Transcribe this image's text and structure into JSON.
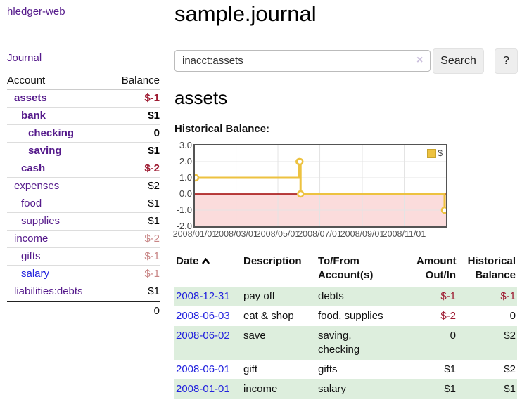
{
  "colors": {
    "link_purple": "#551a8b",
    "link_blue": "#2222dd",
    "negative_strong": "#9e1b32",
    "negative_soft": "#c88585",
    "row_green": "#ddeedd",
    "chart_yellow": "#EDC240"
  },
  "sidebar": {
    "brand": "hledger-web",
    "nav_journal": "Journal",
    "col_account": "Account",
    "col_balance": "Balance",
    "accounts": [
      {
        "name": "assets",
        "depth": 1,
        "bold": true,
        "balance": "$-1",
        "balance_class": "neg-strong",
        "link": "purple"
      },
      {
        "name": "bank",
        "depth": 2,
        "bold": true,
        "balance": "$1",
        "balance_class": "",
        "link": "purple"
      },
      {
        "name": "checking",
        "depth": 3,
        "bold": true,
        "balance": "0",
        "balance_class": "",
        "link": "purple"
      },
      {
        "name": "saving",
        "depth": 3,
        "bold": true,
        "balance": "$1",
        "balance_class": "",
        "link": "purple"
      },
      {
        "name": "cash",
        "depth": 2,
        "bold": true,
        "balance": "$-2",
        "balance_class": "neg-strong",
        "link": "purple"
      },
      {
        "name": "expenses",
        "depth": 1,
        "bold": false,
        "balance": "$2",
        "balance_class": "",
        "link": "purple"
      },
      {
        "name": "food",
        "depth": 2,
        "bold": false,
        "balance": "$1",
        "balance_class": "",
        "link": "purple"
      },
      {
        "name": "supplies",
        "depth": 2,
        "bold": false,
        "balance": "$1",
        "balance_class": "",
        "link": "purple"
      },
      {
        "name": "income",
        "depth": 1,
        "bold": false,
        "balance": "$-2",
        "balance_class": "neg-soft",
        "link": "purple"
      },
      {
        "name": "gifts",
        "depth": 2,
        "bold": false,
        "balance": "$-1",
        "balance_class": "neg-soft",
        "link": "purple"
      },
      {
        "name": "salary",
        "depth": 2,
        "bold": false,
        "balance": "$-1",
        "balance_class": "neg-soft",
        "link": "blue"
      },
      {
        "name": "liabilities:debts",
        "depth": 1,
        "bold": false,
        "balance": "$1",
        "balance_class": "",
        "link": "purple"
      }
    ],
    "total": "0"
  },
  "main": {
    "title": "sample.journal",
    "search": {
      "value": "inacct:assets",
      "clear_icon": "×",
      "search_label": "Search",
      "help_label": "?"
    },
    "account_title": "assets",
    "chart_label": "Historical Balance:"
  },
  "chart_data": {
    "type": "line",
    "title": "Historical Balance",
    "step": true,
    "series": [
      {
        "name": "$",
        "points": [
          [
            "2008-01-01",
            1
          ],
          [
            "2008-06-01",
            2
          ],
          [
            "2008-06-02",
            2
          ],
          [
            "2008-06-03",
            0
          ],
          [
            "2008-12-31",
            -1
          ]
        ]
      }
    ],
    "ylim": [
      -2,
      3
    ],
    "yticks": [
      "3.0",
      "2.0",
      "1.0",
      "0.0",
      "-1.0",
      "-2.0"
    ],
    "ytick_values": [
      3,
      2,
      1,
      0,
      -1,
      -2
    ],
    "xlim": [
      "2008/01/01",
      "2009/01/01"
    ],
    "xticks": [
      "2008/01/01",
      "2008/03/01",
      "2008/05/01",
      "2008/07/01",
      "2008/09/01",
      "2008/11/01"
    ],
    "grid": true,
    "legend_position": "top-right",
    "legend_label": "$",
    "line_color": "#EDC240",
    "marker_fill": "#ffffff",
    "negative_region_fill": "#fbdcdc",
    "zero_line_color": "#a00000",
    "plot_border_color": "#545454"
  },
  "register": {
    "columns": {
      "date": "Date",
      "description": "Description",
      "accounts": "To/From\nAccount(s)",
      "amount": "Amount\nOut/In",
      "balance": "Historical\nBalance"
    },
    "rows": [
      {
        "date": "2008-12-31",
        "description": "pay off",
        "accounts": "debts",
        "amount": "$-1",
        "amount_neg": true,
        "balance": "$-1",
        "balance_neg": true,
        "shaded": true
      },
      {
        "date": "2008-06-03",
        "description": "eat & shop",
        "accounts": "food, supplies",
        "amount": "$-2",
        "amount_neg": true,
        "balance": "0",
        "balance_neg": false,
        "shaded": false
      },
      {
        "date": "2008-06-02",
        "description": "save",
        "accounts": "saving,\nchecking",
        "amount": "0",
        "amount_neg": false,
        "balance": "$2",
        "balance_neg": false,
        "shaded": true
      },
      {
        "date": "2008-06-01",
        "description": "gift",
        "accounts": "gifts",
        "amount": "$1",
        "amount_neg": false,
        "balance": "$2",
        "balance_neg": false,
        "shaded": false
      },
      {
        "date": "2008-01-01",
        "description": "income",
        "accounts": "salary",
        "amount": "$1",
        "amount_neg": false,
        "balance": "$1",
        "balance_neg": false,
        "shaded": true
      }
    ]
  }
}
